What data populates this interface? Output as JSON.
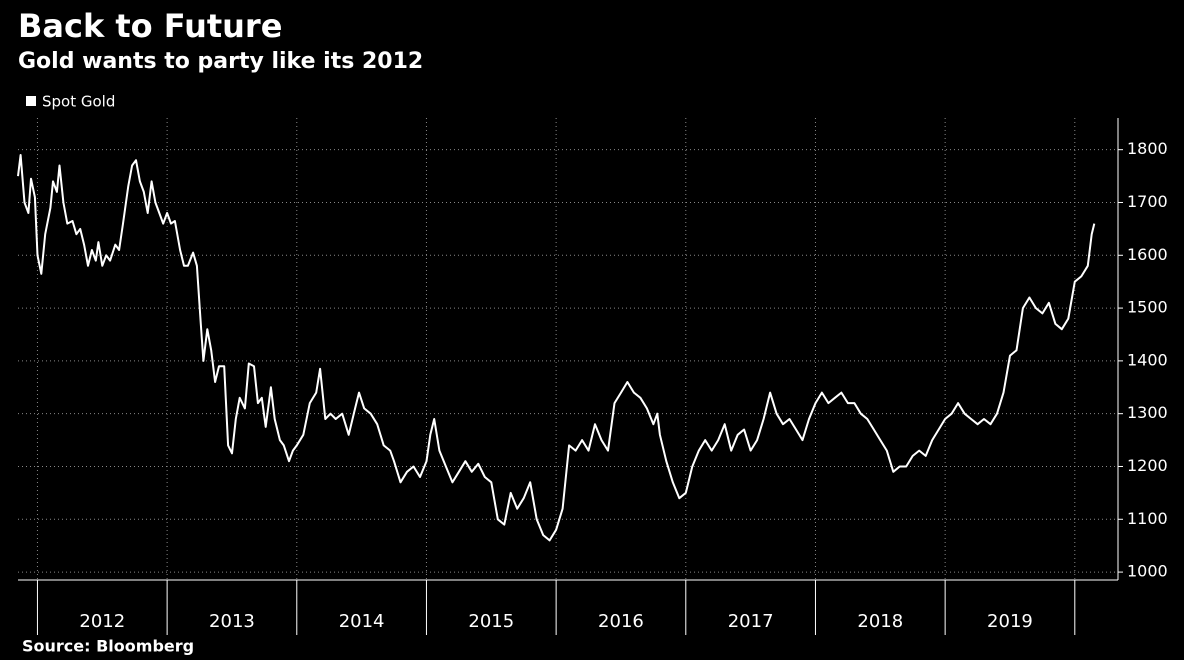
{
  "chart_data": {
    "type": "line",
    "title": "Back to Future",
    "subtitle": "Gold wants to party like its 2012",
    "source": "Source: Bloomberg",
    "x": [
      2011.85,
      2011.87,
      2011.9,
      2011.93,
      2011.95,
      2011.98,
      2012.0,
      2012.03,
      2012.06,
      2012.1,
      2012.12,
      2012.15,
      2012.17,
      2012.2,
      2012.23,
      2012.27,
      2012.3,
      2012.33,
      2012.36,
      2012.39,
      2012.42,
      2012.45,
      2012.47,
      2012.5,
      2012.53,
      2012.56,
      2012.6,
      2012.63,
      2012.66,
      2012.7,
      2012.73,
      2012.76,
      2012.79,
      2012.82,
      2012.85,
      2012.88,
      2012.91,
      2012.94,
      2012.97,
      2013.0,
      2013.03,
      2013.06,
      2013.1,
      2013.13,
      2013.16,
      2013.2,
      2013.23,
      2013.26,
      2013.28,
      2013.31,
      2013.34,
      2013.37,
      2013.4,
      2013.44,
      2013.47,
      2013.5,
      2013.53,
      2013.56,
      2013.6,
      2013.63,
      2013.67,
      2013.7,
      2013.73,
      2013.76,
      2013.8,
      2013.83,
      2013.87,
      2013.9,
      2013.94,
      2013.97,
      2014.0,
      2014.05,
      2014.1,
      2014.15,
      2014.18,
      2014.22,
      2014.26,
      2014.3,
      2014.35,
      2014.4,
      2014.45,
      2014.48,
      2014.52,
      2014.57,
      2014.62,
      2014.67,
      2014.72,
      2014.75,
      2014.8,
      2014.85,
      2014.9,
      2014.95,
      2015.0,
      2015.03,
      2015.06,
      2015.1,
      2015.15,
      2015.2,
      2015.25,
      2015.3,
      2015.35,
      2015.4,
      2015.45,
      2015.5,
      2015.55,
      2015.6,
      2015.65,
      2015.7,
      2015.75,
      2015.8,
      2015.85,
      2015.9,
      2015.95,
      2016.0,
      2016.05,
      2016.1,
      2016.15,
      2016.2,
      2016.25,
      2016.3,
      2016.35,
      2016.4,
      2016.45,
      2016.5,
      2016.55,
      2016.6,
      2016.65,
      2016.7,
      2016.75,
      2016.78,
      2016.8,
      2016.85,
      2016.9,
      2016.95,
      2017.0,
      2017.05,
      2017.1,
      2017.15,
      2017.2,
      2017.25,
      2017.3,
      2017.35,
      2017.4,
      2017.45,
      2017.5,
      2017.55,
      2017.6,
      2017.65,
      2017.7,
      2017.75,
      2017.8,
      2017.85,
      2017.9,
      2017.95,
      2018.0,
      2018.05,
      2018.1,
      2018.15,
      2018.2,
      2018.25,
      2018.3,
      2018.35,
      2018.4,
      2018.45,
      2018.5,
      2018.55,
      2018.6,
      2018.65,
      2018.7,
      2018.75,
      2018.8,
      2018.85,
      2018.9,
      2018.95,
      2019.0,
      2019.05,
      2019.1,
      2019.15,
      2019.2,
      2019.25,
      2019.3,
      2019.35,
      2019.4,
      2019.45,
      2019.5,
      2019.55,
      2019.6,
      2019.65,
      2019.7,
      2019.75,
      2019.8,
      2019.85,
      2019.9,
      2019.95,
      2020.0,
      2020.05,
      2020.1,
      2020.13,
      2020.15
    ],
    "series": [
      {
        "name": "Spot Gold",
        "color": "#ffffff",
        "values": [
          1750,
          1790,
          1700,
          1680,
          1745,
          1710,
          1600,
          1565,
          1640,
          1690,
          1740,
          1720,
          1770,
          1700,
          1660,
          1665,
          1640,
          1650,
          1620,
          1580,
          1610,
          1590,
          1625,
          1580,
          1600,
          1590,
          1620,
          1610,
          1660,
          1730,
          1770,
          1780,
          1740,
          1720,
          1680,
          1740,
          1700,
          1680,
          1660,
          1680,
          1660,
          1665,
          1610,
          1580,
          1580,
          1605,
          1580,
          1470,
          1400,
          1460,
          1420,
          1360,
          1390,
          1390,
          1240,
          1225,
          1290,
          1330,
          1310,
          1395,
          1390,
          1320,
          1330,
          1275,
          1350,
          1290,
          1250,
          1240,
          1210,
          1230,
          1240,
          1260,
          1320,
          1340,
          1385,
          1290,
          1300,
          1290,
          1300,
          1260,
          1310,
          1340,
          1310,
          1300,
          1280,
          1240,
          1230,
          1210,
          1170,
          1190,
          1200,
          1180,
          1210,
          1260,
          1290,
          1230,
          1200,
          1170,
          1190,
          1210,
          1190,
          1205,
          1180,
          1170,
          1100,
          1090,
          1150,
          1120,
          1140,
          1170,
          1100,
          1070,
          1060,
          1080,
          1120,
          1240,
          1230,
          1250,
          1230,
          1280,
          1250,
          1230,
          1320,
          1340,
          1360,
          1340,
          1330,
          1310,
          1280,
          1300,
          1260,
          1210,
          1170,
          1140,
          1150,
          1200,
          1230,
          1250,
          1230,
          1250,
          1280,
          1230,
          1260,
          1270,
          1230,
          1250,
          1290,
          1340,
          1300,
          1280,
          1290,
          1270,
          1250,
          1290,
          1320,
          1340,
          1320,
          1330,
          1340,
          1320,
          1320,
          1300,
          1290,
          1270,
          1250,
          1230,
          1190,
          1200,
          1200,
          1220,
          1230,
          1220,
          1250,
          1270,
          1290,
          1300,
          1320,
          1300,
          1290,
          1280,
          1290,
          1280,
          1300,
          1340,
          1410,
          1420,
          1500,
          1520,
          1500,
          1490,
          1510,
          1470,
          1460,
          1480,
          1550,
          1560,
          1580,
          1640,
          1660
        ]
      }
    ],
    "xlim": [
      2011.85,
      2020.31
    ],
    "xticks": [
      2012,
      2013,
      2014,
      2015,
      2016,
      2017,
      2018,
      2019
    ],
    "ylim": [
      985,
      1860
    ],
    "yticks": [
      1000,
      1100,
      1200,
      1300,
      1400,
      1500,
      1600,
      1700,
      1800
    ],
    "grid": true
  }
}
